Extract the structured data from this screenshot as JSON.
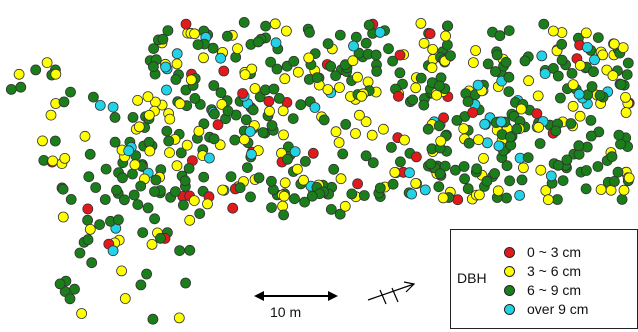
{
  "legend": {
    "title": "DBH",
    "items": [
      {
        "label": "0 ~ 3 cm",
        "color": "#e31a1c"
      },
      {
        "label": "3 ~ 6 cm",
        "color": "#ffff00"
      },
      {
        "label": "6 ~ 9 cm",
        "color": "#1a7f1a"
      },
      {
        "label": "over 9 cm",
        "color": "#22d3e6"
      }
    ]
  },
  "scale_bar": {
    "label": "10 m"
  },
  "north_arrow": {
    "icon": "north-arrow-icon"
  },
  "map": {
    "point_border_color": "#333333"
  }
}
